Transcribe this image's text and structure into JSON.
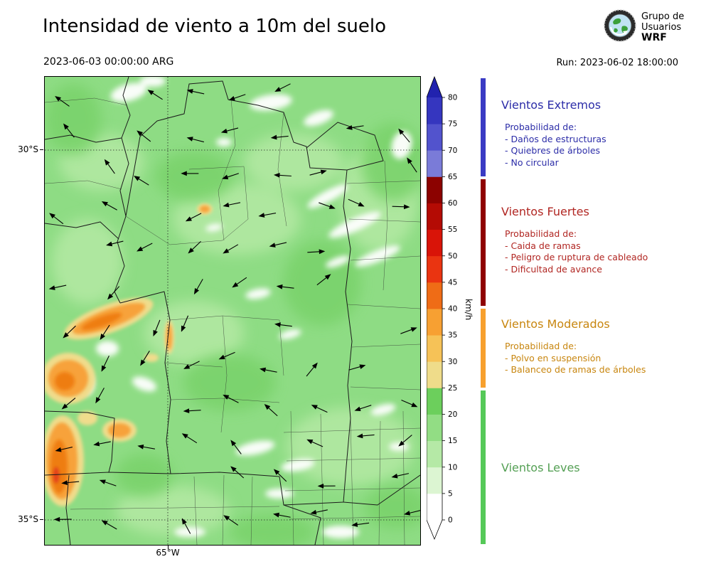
{
  "header": {
    "title": "Intensidad de viento a 10m del suelo",
    "valid_time": "2023-06-03 00:00:00 ARG",
    "run_label": "Run: 2023-06-02 18:00:00",
    "logo": {
      "line1": "Grupo de",
      "line2": "Usuarios",
      "line3": "WRF"
    }
  },
  "map": {
    "lat_labels": [
      "30°S",
      "35°S"
    ],
    "lon_label": "65°W"
  },
  "colorbar": {
    "unit": "km/h",
    "ticks": [
      0,
      5,
      10,
      15,
      20,
      25,
      30,
      35,
      40,
      45,
      50,
      55,
      60,
      65,
      70,
      75,
      80
    ],
    "segments": [
      {
        "from": 0,
        "to": 5,
        "color": "#ffffff"
      },
      {
        "from": 5,
        "to": 10,
        "color": "#dcf5d2"
      },
      {
        "from": 10,
        "to": 15,
        "color": "#b5e9a6"
      },
      {
        "from": 15,
        "to": 20,
        "color": "#92dd84"
      },
      {
        "from": 20,
        "to": 25,
        "color": "#6ccf5c"
      },
      {
        "from": 25,
        "to": 30,
        "color": "#efdc8a"
      },
      {
        "from": 30,
        "to": 35,
        "color": "#f6c257"
      },
      {
        "from": 35,
        "to": 40,
        "color": "#f7a032"
      },
      {
        "from": 40,
        "to": 45,
        "color": "#ef6c16"
      },
      {
        "from": 45,
        "to": 50,
        "color": "#ea3411"
      },
      {
        "from": 50,
        "to": 55,
        "color": "#d91408"
      },
      {
        "from": 55,
        "to": 60,
        "color": "#b40b04"
      },
      {
        "from": 60,
        "to": 65,
        "color": "#8c0200"
      },
      {
        "from": 65,
        "to": 70,
        "color": "#7a7bd8"
      },
      {
        "from": 70,
        "to": 75,
        "color": "#5253cd"
      },
      {
        "from": 75,
        "to": 80,
        "color": "#3536bf"
      }
    ],
    "over_color": "#2122ae",
    "under_color": "#ffffff"
  },
  "legend": {
    "sections": [
      {
        "title": "Vientos Extremos",
        "color": "#2c2da8",
        "strip_color": "#3a3bc4",
        "items": [
          "Probabilidad de:",
          "- Daños de estructuras",
          "- Quiebres de árboles",
          "- No circular"
        ]
      },
      {
        "title": "Vientos Fuertes",
        "color": "#b12622",
        "strip_color": "#8f0202",
        "items": [
          "Probabilidad de:",
          "- Caida de ramas",
          "- Peligro de ruptura de cableado",
          "- Dificultad de avance"
        ]
      },
      {
        "title": "Vientos Moderados",
        "color": "#c8860f",
        "strip_color": "#f7a02e",
        "items": [
          "Probabilidad de:",
          "- Polvo en suspensión",
          "- Balanceo de ramas de árboles"
        ]
      },
      {
        "title": "Vientos Leves",
        "color": "#55a055",
        "strip_color": "#55c958",
        "items": []
      }
    ]
  }
}
